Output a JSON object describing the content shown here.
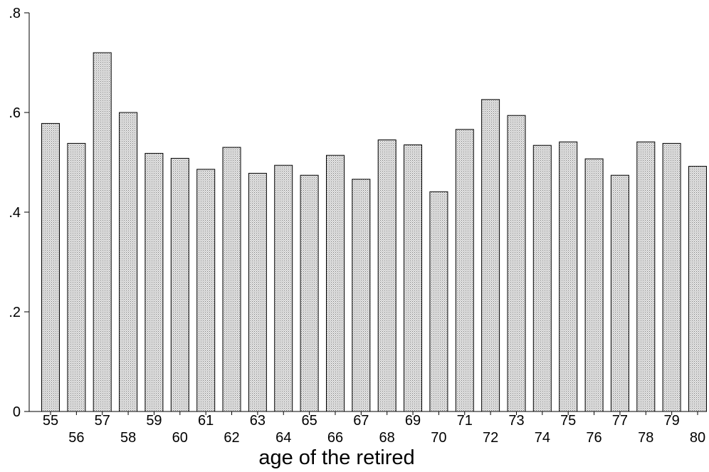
{
  "chart_data": {
    "type": "bar",
    "xlabel": "age of the retired",
    "ylabel": "",
    "ylim": [
      0,
      0.8
    ],
    "yticks": [
      {
        "value": 0,
        "label": "0"
      },
      {
        "value": 0.2,
        "label": ".2"
      },
      {
        "value": 0.4,
        "label": ".4"
      },
      {
        "value": 0.6,
        "label": ".6"
      },
      {
        "value": 0.8,
        "label": ".8"
      }
    ],
    "categories": [
      "55",
      "56",
      "57",
      "58",
      "59",
      "60",
      "61",
      "62",
      "63",
      "64",
      "65",
      "66",
      "67",
      "68",
      "69",
      "70",
      "71",
      "72",
      "73",
      "74",
      "75",
      "76",
      "77",
      "78",
      "79",
      "80"
    ],
    "values": [
      0.578,
      0.538,
      0.72,
      0.6,
      0.518,
      0.508,
      0.486,
      0.53,
      0.478,
      0.494,
      0.474,
      0.514,
      0.466,
      0.545,
      0.535,
      0.441,
      0.566,
      0.626,
      0.594,
      0.534,
      0.541,
      0.507,
      0.474,
      0.541,
      0.538,
      0.492
    ],
    "bar_fill": "#d9d9d9",
    "bar_stroke": "#000000",
    "grid": false,
    "legend": "none"
  }
}
